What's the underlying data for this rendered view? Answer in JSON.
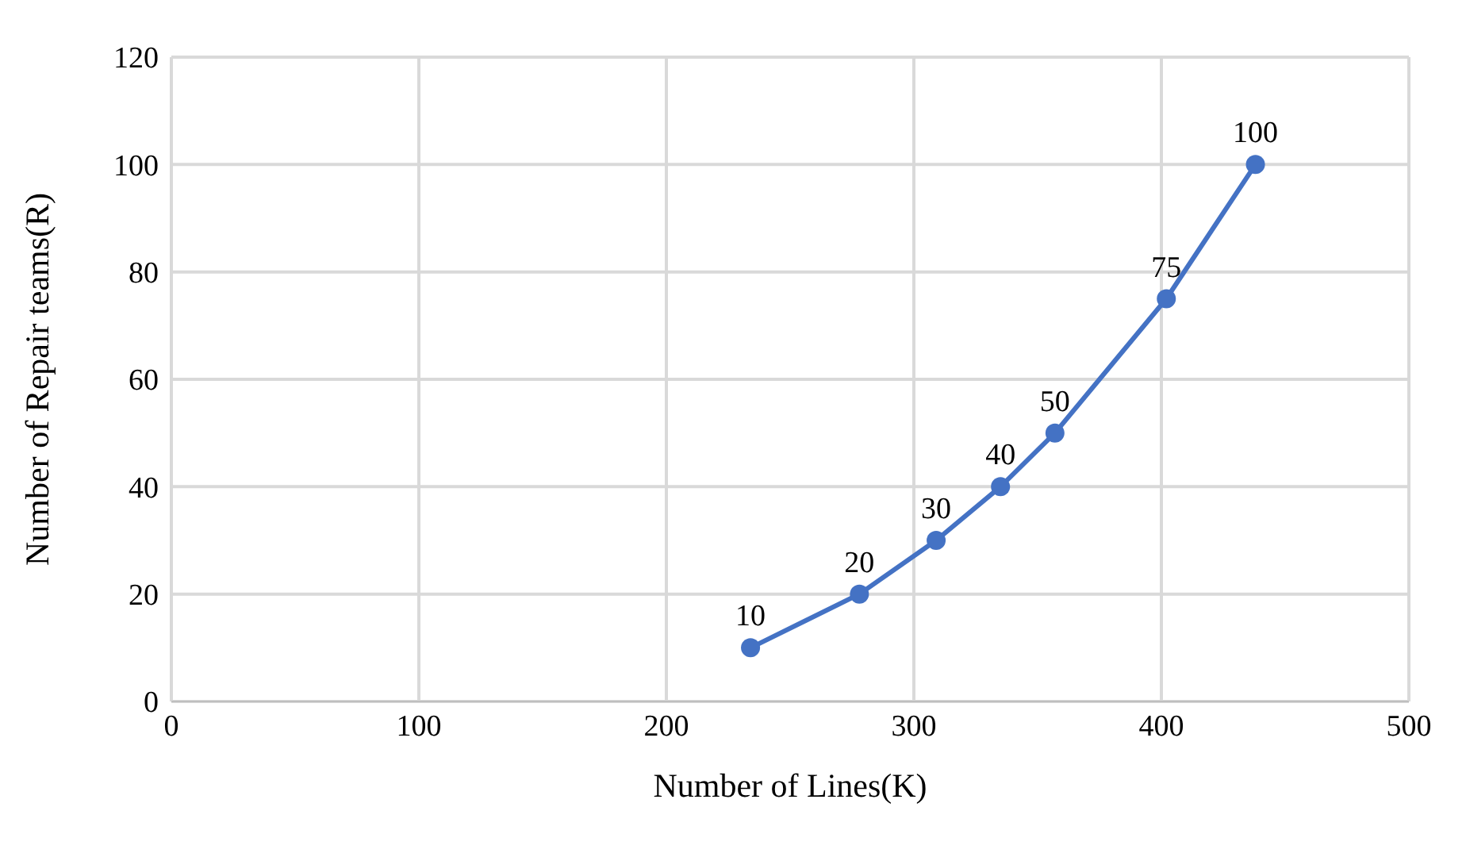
{
  "chart_data": {
    "type": "line",
    "xlabel": "Number of Lines(K)",
    "ylabel": "Number of Repair teams(R)",
    "x": [
      234,
      278,
      309,
      335,
      357,
      402,
      438
    ],
    "series": [
      {
        "color": "#4472c4",
        "values": [
          10,
          20,
          30,
          40,
          50,
          75,
          100
        ]
      }
    ],
    "xlim": [
      0,
      500
    ],
    "xticks": [
      0,
      100,
      200,
      300,
      400,
      500
    ],
    "ylim": [
      0,
      120
    ],
    "yticks": [
      0,
      20,
      40,
      60,
      80,
      100,
      120
    ],
    "grid": true,
    "marker": "circle",
    "line_style": "solid",
    "data_labels": true,
    "legend": false
  }
}
